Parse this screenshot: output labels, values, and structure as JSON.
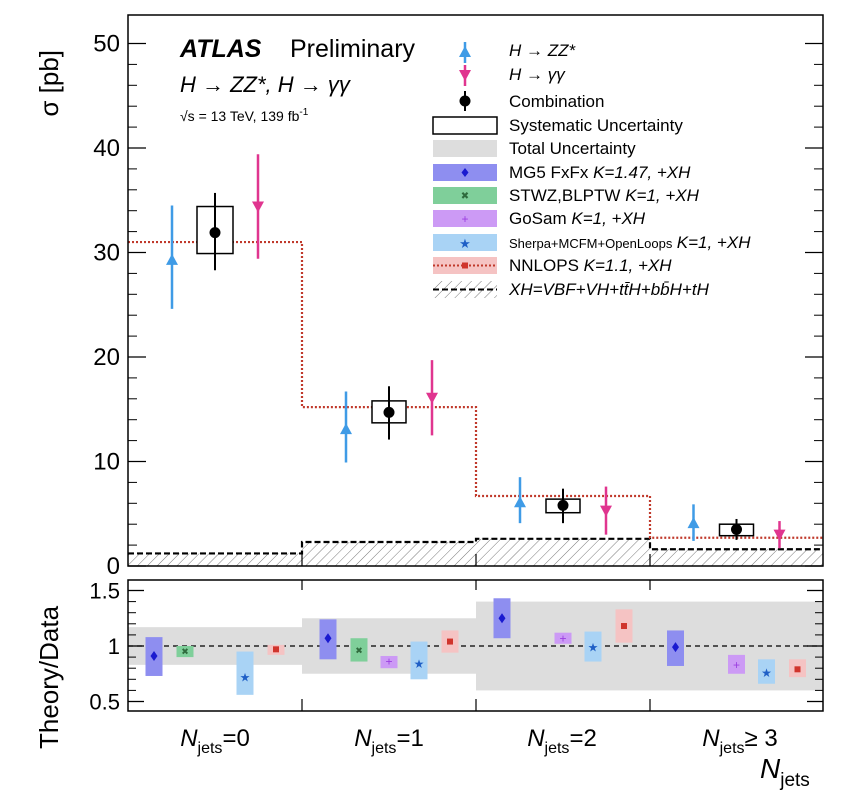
{
  "header": {
    "experiment": "ATLAS",
    "status": "Preliminary",
    "channels": "H → ZZ*, H → γγ",
    "energy": "√s = 13 TeV, 139 fb",
    "lumi_exp": "-1"
  },
  "colors": {
    "zz": "#3f9be6",
    "gg": "#e0358f",
    "combo": "#000000",
    "nnlops": "#c0392b",
    "mg5_band": "#8e8ef0",
    "mg5_mark": "#1a1ad0",
    "stwz_band": "#7fcf9a",
    "stwz_mark": "#2f6b3d",
    "gosam_band": "#cc9af5",
    "gosam_mark": "#9b3fe0",
    "sherpa_band": "#a9d3f5",
    "sherpa_mark": "#1f5fc6",
    "nnlops_band": "#f5c3c3",
    "nnlops_mark": "#d0342c",
    "total_unc": "#dddddd"
  },
  "legend": {
    "zz": "H → ZZ*",
    "gg": "H → γγ",
    "combination": "Combination",
    "syst": "Systematic Uncertainty",
    "total": "Total Uncertainty",
    "mg5_a": "MG5 FxFx",
    "mg5_b": "K=1.47, +XH",
    "stwz_a": "STWZ,BLPTW",
    "stwz_b": "K=1, +XH",
    "gosam_a": "GoSam",
    "gosam_b": "K=1, +XH",
    "sherpa_a": "Sherpa+MCFM+OpenLoops",
    "sherpa_b": "K=1, +XH",
    "nnlops_a": "NNLOPS",
    "nnlops_b": "K=1.1, +XH",
    "xh": "XH=VBF+VH+tt̄H+bb̄H+tH"
  },
  "chart_data": [
    {
      "type": "scatter",
      "panel": "main",
      "ylabel": "σ [pb]",
      "ylim": [
        0,
        52
      ],
      "yticks": [
        0,
        10,
        20,
        30,
        40,
        50
      ],
      "categories": [
        "N_jets=0",
        "N_jets=1",
        "N_jets=2",
        "N_jets≥3"
      ],
      "series": [
        {
          "name": "H → ZZ*",
          "values": [
            29.3,
            13.1,
            6.1,
            4.1
          ],
          "err_lo": [
            4.7,
            3.2,
            2.0,
            1.7
          ],
          "err_hi": [
            5.2,
            3.6,
            2.4,
            1.8
          ]
        },
        {
          "name": "H → γγ",
          "values": [
            34.4,
            16.1,
            5.3,
            3.0
          ],
          "err_lo": [
            5.0,
            3.6,
            2.3,
            1.3
          ],
          "err_hi": [
            5.0,
            3.6,
            2.3,
            1.3
          ]
        },
        {
          "name": "Combination",
          "values": [
            31.9,
            14.7,
            5.8,
            3.5
          ],
          "err_lo": [
            3.6,
            2.6,
            1.7,
            1.0
          ],
          "err_hi": [
            3.8,
            2.5,
            1.6,
            1.0
          ],
          "syst_lo": [
            29.9,
            13.7,
            5.1,
            2.9
          ],
          "syst_hi": [
            34.4,
            15.8,
            6.4,
            4.0
          ]
        },
        {
          "name": "NNLOPS K=1.1, +XH",
          "values": [
            31.0,
            15.2,
            6.7,
            2.7
          ]
        },
        {
          "name": "XH=VBF+VH+tt̄H+bb̄H+tH",
          "values": [
            1.2,
            2.3,
            2.6,
            1.6
          ]
        }
      ]
    },
    {
      "type": "scatter",
      "panel": "ratio",
      "ylabel": "Theory/Data",
      "xlabel": "N_jets",
      "ylim": [
        0.4,
        1.6
      ],
      "yticks": [
        0.5,
        1,
        1.5
      ],
      "categories": [
        "N_jets=0",
        "N_jets=1",
        "N_jets=2",
        "N_jets≥3"
      ],
      "total_uncertainty": {
        "lo": [
          0.83,
          0.75,
          0.6,
          0.6
        ],
        "hi": [
          1.17,
          1.25,
          1.4,
          1.4
        ]
      },
      "series": [
        {
          "name": "MG5 FxFx K=1.47, +XH",
          "values": [
            0.91,
            1.07,
            1.25,
            0.99
          ],
          "lo": [
            0.73,
            0.88,
            1.07,
            0.82
          ],
          "hi": [
            1.08,
            1.24,
            1.43,
            1.14
          ]
        },
        {
          "name": "STWZ,BLPTW K=1, +XH",
          "values": [
            0.95,
            0.96,
            null,
            null
          ],
          "lo": [
            0.9,
            0.86,
            null,
            null
          ],
          "hi": [
            1.0,
            1.07,
            null,
            null
          ]
        },
        {
          "name": "GoSam K=1, +XH",
          "values": [
            null,
            0.86,
            1.07,
            0.83
          ],
          "lo": [
            null,
            0.8,
            1.02,
            0.75
          ],
          "hi": [
            null,
            0.91,
            1.12,
            0.92
          ]
        },
        {
          "name": "Sherpa+MCFM+OpenLoops K=1, +XH",
          "values": [
            0.72,
            0.84,
            0.99,
            0.76
          ],
          "lo": [
            0.56,
            0.7,
            0.86,
            0.66
          ],
          "hi": [
            0.95,
            1.04,
            1.13,
            0.88
          ]
        },
        {
          "name": "NNLOPS K=1.1, +XH",
          "values": [
            0.97,
            1.04,
            1.18,
            0.79
          ],
          "lo": [
            0.92,
            0.94,
            1.03,
            0.72
          ],
          "hi": [
            1.01,
            1.14,
            1.33,
            0.88
          ]
        }
      ]
    }
  ],
  "xaxis": {
    "labels": [
      {
        "sym": "N",
        "sub": "jets",
        "rest": "=0"
      },
      {
        "sym": "N",
        "sub": "jets",
        "rest": "=1"
      },
      {
        "sym": "N",
        "sub": "jets",
        "rest": "=2"
      },
      {
        "sym": "N",
        "sub": "jets",
        "rest": "≥ 3"
      }
    ],
    "title_sym": "N",
    "title_sub": "jets"
  }
}
